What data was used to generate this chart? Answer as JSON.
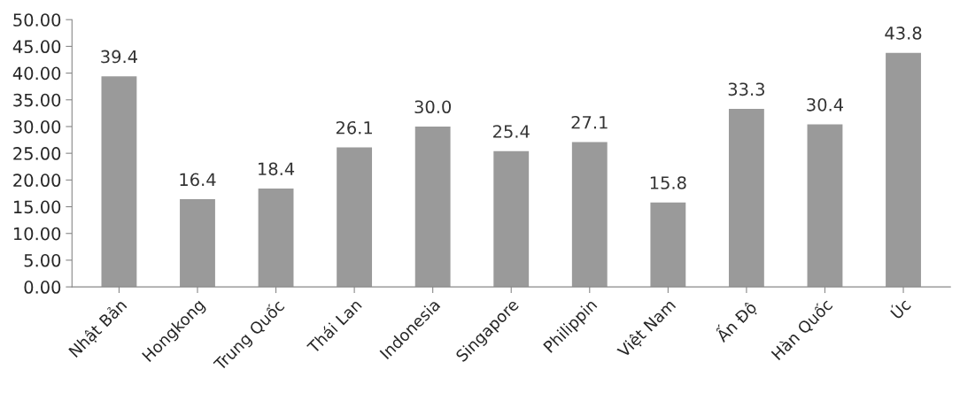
{
  "chart_data": {
    "type": "bar",
    "categories": [
      "Nhật Bản",
      "Hongkong",
      "Trung Quốc",
      "Thái Lan",
      "Indonesia",
      "Singapore",
      "Philippin",
      "Việt Nam",
      "Ấn Độ",
      "Hàn Quốc",
      "Úc"
    ],
    "values": [
      39.4,
      16.4,
      18.4,
      26.1,
      30.0,
      25.4,
      27.1,
      15.8,
      33.3,
      30.4,
      43.8
    ],
    "color": "#9a9a9a",
    "ylim": [
      0,
      50
    ],
    "yticks": [
      {
        "value": 0,
        "label": "0.00"
      },
      {
        "value": 5,
        "label": "5.00"
      },
      {
        "value": 10,
        "label": "10.00"
      },
      {
        "value": 15,
        "label": "15.00"
      },
      {
        "value": 20,
        "label": "20.00"
      },
      {
        "value": 25,
        "label": "25.00"
      },
      {
        "value": 30,
        "label": "30.00"
      },
      {
        "value": 35,
        "label": "35.00"
      },
      {
        "value": 40,
        "label": "40.00"
      },
      {
        "value": 45,
        "label": "45.00"
      },
      {
        "value": 50,
        "label": "50.00"
      }
    ],
    "value_labels": [
      "39.4",
      "16.4",
      "18.4",
      "26.1",
      "30.0",
      "25.4",
      "27.1",
      "15.8",
      "33.3",
      "30.4",
      "43.8"
    ],
    "grid": false,
    "legend": false
  }
}
